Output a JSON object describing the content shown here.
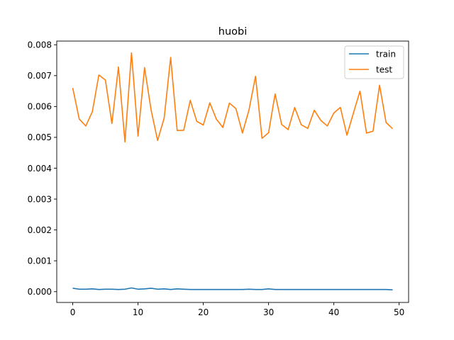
{
  "chart_data": {
    "type": "line",
    "title": "huobi",
    "xlabel": "",
    "ylabel": "",
    "xlim": [
      -2.45,
      51.45
    ],
    "ylim": [
      -0.00035,
      0.00812
    ],
    "x_ticks": [
      0,
      10,
      20,
      30,
      40,
      50
    ],
    "x_tick_labels": [
      "0",
      "10",
      "20",
      "30",
      "40",
      "50"
    ],
    "y_ticks": [
      0.0,
      0.001,
      0.002,
      0.003,
      0.004,
      0.005,
      0.006,
      0.007,
      0.008
    ],
    "y_tick_labels": [
      "0.000",
      "0.001",
      "0.002",
      "0.003",
      "0.004",
      "0.005",
      "0.006",
      "0.007",
      "0.008"
    ],
    "grid": false,
    "legend_position": "top-right",
    "x": [
      0,
      1,
      2,
      3,
      4,
      5,
      6,
      7,
      8,
      9,
      10,
      11,
      12,
      13,
      14,
      15,
      16,
      17,
      18,
      19,
      20,
      21,
      22,
      23,
      24,
      25,
      26,
      27,
      28,
      29,
      30,
      31,
      32,
      33,
      34,
      35,
      36,
      37,
      38,
      39,
      40,
      41,
      42,
      43,
      44,
      45,
      46,
      47,
      48,
      49
    ],
    "series": [
      {
        "name": "train",
        "color": "#1f77b4",
        "values": [
          0.00011,
          8e-05,
          8e-05,
          9e-05,
          7e-05,
          8e-05,
          8e-05,
          7e-05,
          8e-05,
          0.00012,
          8e-05,
          9e-05,
          0.00011,
          8e-05,
          9e-05,
          7e-05,
          9e-05,
          8e-05,
          7e-05,
          7e-05,
          7e-05,
          7e-05,
          7e-05,
          7e-05,
          7e-05,
          7e-05,
          7e-05,
          8e-05,
          7e-05,
          7e-05,
          9e-05,
          7e-05,
          7e-05,
          7e-05,
          7e-05,
          7e-05,
          7e-05,
          7e-05,
          7e-05,
          7e-05,
          7e-05,
          7e-05,
          7e-05,
          7e-05,
          7e-05,
          7e-05,
          7e-05,
          7e-05,
          7e-05,
          6e-05
        ]
      },
      {
        "name": "test",
        "color": "#ff7f0e",
        "values": [
          0.0066,
          0.00559,
          0.00537,
          0.00583,
          0.00702,
          0.00686,
          0.00545,
          0.00728,
          0.00485,
          0.00774,
          0.00504,
          0.00726,
          0.00589,
          0.0049,
          0.00562,
          0.00759,
          0.00522,
          0.00523,
          0.0062,
          0.00552,
          0.0054,
          0.00612,
          0.00559,
          0.00532,
          0.00611,
          0.00593,
          0.00514,
          0.00589,
          0.00698,
          0.00497,
          0.00515,
          0.00641,
          0.00542,
          0.00525,
          0.00597,
          0.00541,
          0.00529,
          0.00588,
          0.00555,
          0.00537,
          0.00579,
          0.00597,
          0.00507,
          0.00579,
          0.0065,
          0.00514,
          0.0052,
          0.00669,
          0.00548,
          0.00528
        ]
      }
    ]
  }
}
